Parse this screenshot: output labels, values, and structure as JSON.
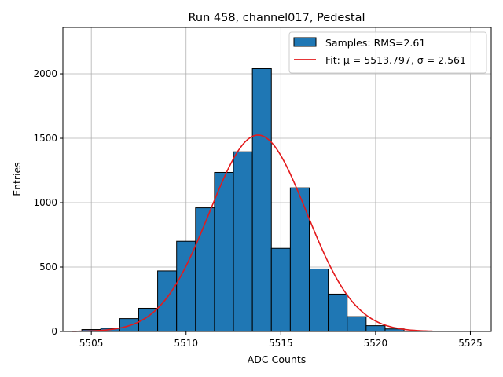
{
  "chart_data": {
    "type": "bar",
    "title": "Run 458, channel017, Pedestal",
    "xlabel": "ADC Counts",
    "ylabel": "Entries",
    "xlim": [
      5503.5,
      5526.1
    ],
    "ylim": [
      0,
      2360
    ],
    "grid": true,
    "xticks": [
      5505,
      5510,
      5515,
      5520,
      5525
    ],
    "yticks": [
      0,
      500,
      1000,
      1500,
      2000
    ],
    "bin_width": 1,
    "bars": [
      {
        "x": 5505,
        "value": 15
      },
      {
        "x": 5506,
        "value": 25
      },
      {
        "x": 5507,
        "value": 100
      },
      {
        "x": 5508,
        "value": 180
      },
      {
        "x": 5509,
        "value": 470
      },
      {
        "x": 5510,
        "value": 700
      },
      {
        "x": 5511,
        "value": 960
      },
      {
        "x": 5512,
        "value": 1235
      },
      {
        "x": 5513,
        "value": 1395
      },
      {
        "x": 5514,
        "value": 2040
      },
      {
        "x": 5515,
        "value": 645
      },
      {
        "x": 5516,
        "value": 1115
      },
      {
        "x": 5517,
        "value": 485
      },
      {
        "x": 5518,
        "value": 290
      },
      {
        "x": 5519,
        "value": 115
      },
      {
        "x": 5520,
        "value": 45
      },
      {
        "x": 5521,
        "value": 20
      },
      {
        "x": 5522,
        "value": 3
      }
    ],
    "fit": {
      "type": "gaussian",
      "mu": 5513.797,
      "sigma": 2.561,
      "amplitude": 1525,
      "x_range": [
        5504,
        5523
      ]
    },
    "legend": {
      "placement": "top-right",
      "entries": [
        "Samples: RMS=2.61",
        "Fit: μ = 5513.797, σ = 2.561"
      ]
    },
    "colors": {
      "bar_fill": "#1f77b4",
      "bar_edge": "#000000",
      "fit_line": "#e31a1c",
      "grid": "#b0b0b0"
    }
  }
}
